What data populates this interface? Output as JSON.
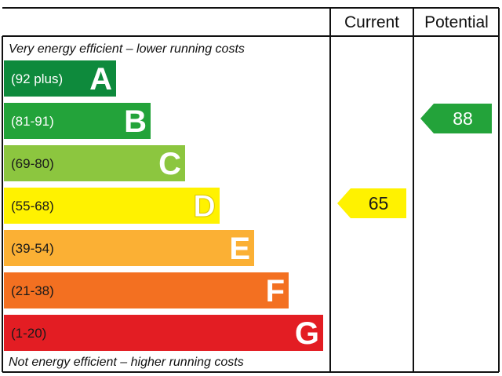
{
  "chart_data": {
    "type": "bar",
    "header": {
      "current_label": "Current",
      "potential_label": "Potential"
    },
    "top_note": "Very energy efficient – lower running costs",
    "bottom_note": "Not energy efficient – higher running costs",
    "bands": [
      {
        "letter": "A",
        "range": "(92 plus)",
        "min": 92,
        "max": 100,
        "color": "#0e8a3c",
        "text_color": "#ffffff",
        "letter_color": "#ffffff"
      },
      {
        "letter": "B",
        "range": "(81-91)",
        "min": 81,
        "max": 91,
        "color": "#23a33a",
        "text_color": "#ffffff",
        "letter_color": "#ffffff"
      },
      {
        "letter": "C",
        "range": "(69-80)",
        "min": 69,
        "max": 80,
        "color": "#8cc63f",
        "text_color": "#1a1a1a",
        "letter_color": "#ffffff"
      },
      {
        "letter": "D",
        "range": "(55-68)",
        "min": 55,
        "max": 68,
        "color": "#fff200",
        "text_color": "#1a1a1a",
        "letter_color": "#ffffff"
      },
      {
        "letter": "E",
        "range": "(39-54)",
        "min": 39,
        "max": 54,
        "color": "#fbb034",
        "text_color": "#1a1a1a",
        "letter_color": "#ffffff"
      },
      {
        "letter": "F",
        "range": "(21-38)",
        "min": 21,
        "max": 38,
        "color": "#f37021",
        "text_color": "#1a1a1a",
        "letter_color": "#ffffff"
      },
      {
        "letter": "G",
        "range": "(1-20)",
        "min": 1,
        "max": 20,
        "color": "#e31d23",
        "text_color": "#1a1a1a",
        "letter_color": "#ffffff"
      }
    ],
    "current": {
      "value": 65,
      "band": "D",
      "color": "#fff200",
      "text_color": "#1a1a1a"
    },
    "potential": {
      "value": 88,
      "band": "B",
      "color": "#23a33a",
      "text_color": "#ffffff"
    }
  }
}
